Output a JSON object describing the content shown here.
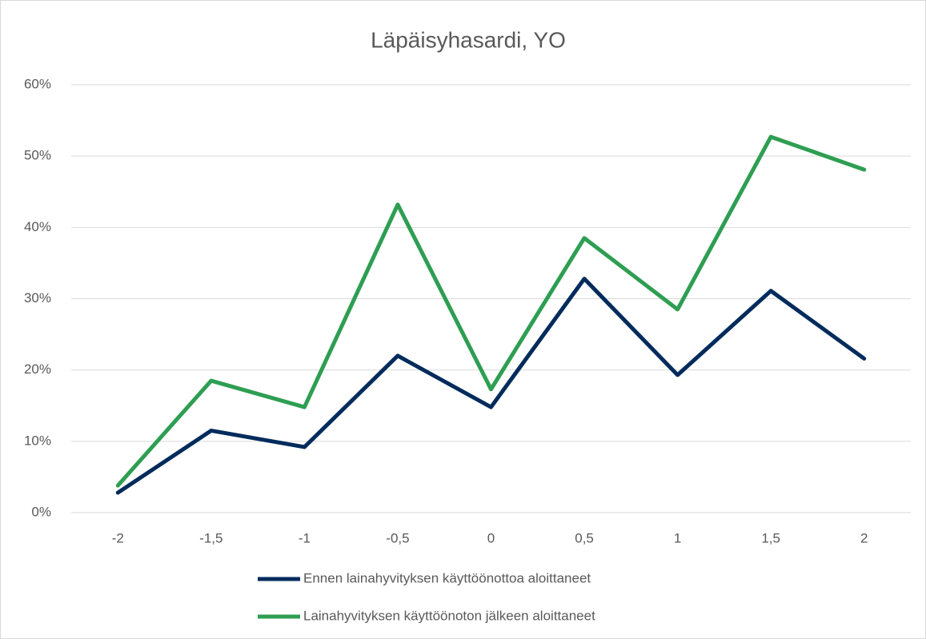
{
  "chart_data": {
    "type": "line",
    "title": "Läpäisyhasardi, YO",
    "categories": [
      "-2",
      "-1,5",
      "-1",
      "-0,5",
      "0",
      "0,5",
      "1",
      "1,5",
      "2"
    ],
    "series": [
      {
        "name": "Ennen lainahyvityksen käyttöönottoa aloittaneet",
        "color": "#002b5c",
        "values": [
          2.8,
          11.5,
          9.2,
          22.0,
          14.8,
          32.8,
          19.3,
          31.1,
          21.6
        ]
      },
      {
        "name": "Lainahyvityksen käyttöönoton jälkeen aloittaneet",
        "color": "#2e9e52",
        "values": [
          3.8,
          18.5,
          14.8,
          43.2,
          17.3,
          38.5,
          28.5,
          52.7,
          48.1
        ]
      }
    ],
    "ylim": [
      0,
      60
    ],
    "yticks": [
      {
        "value": 0,
        "label": "0%"
      },
      {
        "value": 10,
        "label": "10%"
      },
      {
        "value": 20,
        "label": "20%"
      },
      {
        "value": 30,
        "label": "30%"
      },
      {
        "value": 40,
        "label": "40%"
      },
      {
        "value": 50,
        "label": "50%"
      },
      {
        "value": 60,
        "label": "60%"
      }
    ],
    "grid": true,
    "legend": "bottom"
  }
}
